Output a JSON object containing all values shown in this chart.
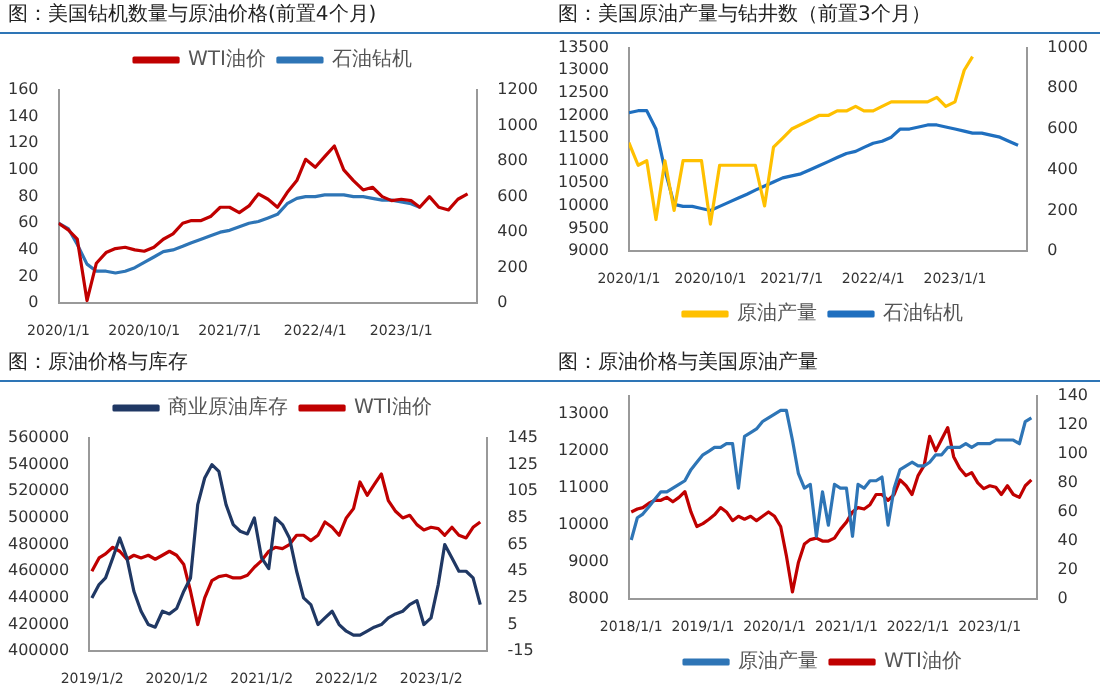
{
  "chart_data": [
    {
      "type": "line",
      "title": "图：美国钻机数量与原油价格(前置4个月)",
      "legend": "top",
      "marker": "none",
      "line_style": "solid",
      "xlim": [
        "2020-01-01",
        "2023-09-01"
      ],
      "xticks": [
        {
          "value": "2020-01-01",
          "label": "2020/1/1"
        },
        {
          "value": "2020-10-01",
          "label": "2020/10/1"
        },
        {
          "value": "2021-07-01",
          "label": "2021/7/1"
        },
        {
          "value": "2022-04-01",
          "label": "2022/4/1"
        },
        {
          "value": "2023-01-01",
          "label": "2023/1/1"
        }
      ],
      "ylim": [
        0,
        160
      ],
      "yticks": [
        0,
        20,
        40,
        60,
        80,
        100,
        120,
        140,
        160
      ],
      "y2lim": [
        0,
        1200
      ],
      "y2ticks": [
        0,
        200,
        400,
        600,
        800,
        1000,
        1200
      ],
      "series": [
        {
          "name": "WTI油价",
          "color": "#c00000",
          "x": [
            "2020-01",
            "2020-02",
            "2020-03",
            "2020-04",
            "2020-05",
            "2020-06",
            "2020-07",
            "2020-08",
            "2020-09",
            "2020-10",
            "2020-11",
            "2020-12",
            "2021-01",
            "2021-02",
            "2021-03",
            "2021-04",
            "2021-05",
            "2021-06",
            "2021-07",
            "2021-08",
            "2021-09",
            "2021-10",
            "2021-11",
            "2021-12",
            "2022-01",
            "2022-02",
            "2022-03",
            "2022-04",
            "2022-05",
            "2022-06",
            "2022-07",
            "2022-08",
            "2022-09",
            "2022-10",
            "2022-11",
            "2022-12",
            "2023-01",
            "2023-02",
            "2023-03",
            "2023-04",
            "2023-05",
            "2023-06",
            "2023-07",
            "2023-08"
          ],
          "values": [
            60,
            55,
            48,
            2,
            30,
            38,
            41,
            42,
            40,
            39,
            42,
            48,
            52,
            60,
            62,
            62,
            65,
            72,
            72,
            68,
            73,
            82,
            78,
            72,
            83,
            92,
            108,
            102,
            110,
            118,
            100,
            92,
            85,
            87,
            80,
            77,
            78,
            77,
            72,
            80,
            72,
            70,
            78,
            82
          ]
        },
        {
          "name": "石油钻机",
          "color": "#2e75b6",
          "axis": "y2",
          "x": [
            "2020-01",
            "2020-02",
            "2020-03",
            "2020-04",
            "2020-05",
            "2020-06",
            "2020-07",
            "2020-08",
            "2020-09",
            "2020-10",
            "2020-11",
            "2020-12",
            "2021-01",
            "2021-02",
            "2021-03",
            "2021-04",
            "2021-05",
            "2021-06",
            "2021-07",
            "2021-08",
            "2021-09",
            "2021-10",
            "2021-11",
            "2021-12",
            "2022-01",
            "2022-02",
            "2022-03",
            "2022-04",
            "2022-05",
            "2022-06",
            "2022-07",
            "2022-08",
            "2022-09",
            "2022-10",
            "2022-11",
            "2022-12",
            "2023-01",
            "2023-02",
            "2023-03"
          ],
          "values": [
            450,
            420,
            330,
            220,
            180,
            180,
            170,
            180,
            200,
            230,
            260,
            290,
            300,
            320,
            340,
            360,
            380,
            400,
            410,
            430,
            450,
            460,
            480,
            500,
            560,
            590,
            600,
            600,
            610,
            610,
            610,
            600,
            600,
            590,
            580,
            580,
            570,
            560,
            540
          ]
        }
      ]
    },
    {
      "type": "line",
      "title": "图：美国原油产量与钻井数（前置3个月）",
      "legend": "bottom",
      "marker": "none",
      "line_style": "solid",
      "xlim": [
        "2020-01-01",
        "2023-09-01"
      ],
      "xticks": [
        {
          "value": "2020-01-01",
          "label": "2020/1/1"
        },
        {
          "value": "2020-10-01",
          "label": "2020/10/1"
        },
        {
          "value": "2021-07-01",
          "label": "2021/7/1"
        },
        {
          "value": "2022-04-01",
          "label": "2022/4/1"
        },
        {
          "value": "2023-01-01",
          "label": "2023/1/1"
        }
      ],
      "ylim": [
        9000,
        13500
      ],
      "yticks": [
        9000,
        9500,
        10000,
        10500,
        11000,
        11500,
        12000,
        12500,
        13000,
        13500
      ],
      "y2lim": [
        0,
        1000
      ],
      "y2ticks": [
        0,
        200,
        400,
        600,
        800,
        1000
      ],
      "series": [
        {
          "name": "原油产量",
          "color": "#ffc000",
          "x": [
            "2020-01",
            "2020-02",
            "2020-03",
            "2020-04",
            "2020-05",
            "2020-06",
            "2020-07",
            "2020-08",
            "2020-09",
            "2020-10",
            "2020-11",
            "2020-12",
            "2021-01",
            "2021-02",
            "2021-03",
            "2021-04",
            "2021-05",
            "2021-06",
            "2021-07",
            "2021-08",
            "2021-09",
            "2021-10",
            "2021-11",
            "2021-12",
            "2022-01",
            "2022-02",
            "2022-03",
            "2022-04",
            "2022-05",
            "2022-06",
            "2022-07",
            "2022-08",
            "2022-09",
            "2022-10",
            "2022-11",
            "2022-12",
            "2023-01",
            "2023-02",
            "2023-03"
          ],
          "values": [
            11400,
            10900,
            11000,
            9700,
            11000,
            9900,
            11000,
            11000,
            11000,
            9600,
            10900,
            10900,
            10900,
            10900,
            10900,
            10000,
            11300,
            11500,
            11700,
            11800,
            11900,
            12000,
            12000,
            12100,
            12100,
            12200,
            12100,
            12100,
            12200,
            12300,
            12300,
            12300,
            12300,
            12300,
            12400,
            12200,
            12300,
            13000,
            13300
          ]
        },
        {
          "name": "石油钻机",
          "color": "#1f6fbf",
          "axis": "y2",
          "x": [
            "2020-01",
            "2020-02",
            "2020-03",
            "2020-04",
            "2020-05",
            "2020-06",
            "2020-07",
            "2020-08",
            "2020-09",
            "2020-10",
            "2020-11",
            "2020-12",
            "2021-01",
            "2021-02",
            "2021-03",
            "2021-04",
            "2021-05",
            "2021-06",
            "2021-07",
            "2021-08",
            "2021-09",
            "2021-10",
            "2021-11",
            "2021-12",
            "2022-01",
            "2022-02",
            "2022-03",
            "2022-04",
            "2022-05",
            "2022-06",
            "2022-07",
            "2022-08",
            "2022-09",
            "2022-10",
            "2022-11",
            "2022-12",
            "2023-01",
            "2023-02",
            "2023-03",
            "2023-04",
            "2023-05",
            "2023-06",
            "2023-07",
            "2023-08"
          ],
          "values": [
            680,
            690,
            690,
            600,
            400,
            230,
            220,
            220,
            210,
            200,
            220,
            240,
            260,
            280,
            300,
            320,
            340,
            360,
            370,
            380,
            400,
            420,
            440,
            460,
            480,
            490,
            510,
            530,
            540,
            560,
            600,
            600,
            610,
            620,
            620,
            610,
            600,
            590,
            580,
            580,
            570,
            560,
            540,
            520
          ]
        }
      ]
    },
    {
      "type": "line",
      "title": "图：原油价格与库存",
      "legend": "top",
      "marker": "none",
      "line_style": "solid",
      "xlim": [
        "2018-12-20",
        "2023-09-01"
      ],
      "xticks": [
        {
          "value": "2019-01-02",
          "label": "2019/1/2"
        },
        {
          "value": "2020-01-02",
          "label": "2020/1/2"
        },
        {
          "value": "2021-01-02",
          "label": "2021/1/2"
        },
        {
          "value": "2022-01-02",
          "label": "2022/1/2"
        },
        {
          "value": "2023-01-02",
          "label": "2023/1/2"
        }
      ],
      "ylim": [
        400000,
        560000
      ],
      "yticks": [
        400000,
        420000,
        440000,
        460000,
        480000,
        500000,
        520000,
        540000,
        560000
      ],
      "y2lim": [
        -15,
        145
      ],
      "y2ticks": [
        -15,
        5,
        25,
        45,
        65,
        85,
        105,
        125,
        145
      ],
      "series": [
        {
          "name": "商业原油库存",
          "color": "#203864",
          "x": [
            "2019-01",
            "2019-02",
            "2019-03",
            "2019-04",
            "2019-05",
            "2019-06",
            "2019-07",
            "2019-08",
            "2019-09",
            "2019-10",
            "2019-11",
            "2019-12",
            "2020-01",
            "2020-02",
            "2020-03",
            "2020-04",
            "2020-05",
            "2020-06",
            "2020-07",
            "2020-08",
            "2020-09",
            "2020-10",
            "2020-11",
            "2020-12",
            "2021-01",
            "2021-02",
            "2021-03",
            "2021-04",
            "2021-05",
            "2021-06",
            "2021-07",
            "2021-08",
            "2021-09",
            "2021-10",
            "2021-11",
            "2021-12",
            "2022-01",
            "2022-02",
            "2022-03",
            "2022-04",
            "2022-05",
            "2022-06",
            "2022-07",
            "2022-08",
            "2022-09",
            "2022-10",
            "2022-11",
            "2022-12",
            "2023-01",
            "2023-02",
            "2023-03",
            "2023-04",
            "2023-05",
            "2023-06",
            "2023-07",
            "2023-08"
          ],
          "values": [
            440000,
            450000,
            455000,
            470000,
            485000,
            470000,
            445000,
            430000,
            420000,
            418000,
            430000,
            428000,
            432000,
            445000,
            455000,
            510000,
            530000,
            540000,
            535000,
            510000,
            495000,
            490000,
            488000,
            500000,
            470000,
            462000,
            500000,
            495000,
            485000,
            460000,
            440000,
            435000,
            420000,
            425000,
            430000,
            420000,
            415000,
            412000,
            412000,
            415000,
            418000,
            420000,
            425000,
            428000,
            430000,
            435000,
            438000,
            420000,
            425000,
            450000,
            480000,
            470000,
            460000,
            460000,
            455000,
            435000
          ]
        },
        {
          "name": "WTI油价",
          "color": "#c00000",
          "axis": "y2",
          "x": [
            "2019-01",
            "2019-02",
            "2019-03",
            "2019-04",
            "2019-05",
            "2019-06",
            "2019-07",
            "2019-08",
            "2019-09",
            "2019-10",
            "2019-11",
            "2019-12",
            "2020-01",
            "2020-02",
            "2020-03",
            "2020-04",
            "2020-05",
            "2020-06",
            "2020-07",
            "2020-08",
            "2020-09",
            "2020-10",
            "2020-11",
            "2020-12",
            "2021-01",
            "2021-02",
            "2021-03",
            "2021-04",
            "2021-05",
            "2021-06",
            "2021-07",
            "2021-08",
            "2021-09",
            "2021-10",
            "2021-11",
            "2021-12",
            "2022-01",
            "2022-02",
            "2022-03",
            "2022-04",
            "2022-05",
            "2022-06",
            "2022-07",
            "2022-08",
            "2022-09",
            "2022-10",
            "2022-11",
            "2022-12",
            "2023-01",
            "2023-02",
            "2023-03",
            "2023-04",
            "2023-05",
            "2023-06",
            "2023-07",
            "2023-08"
          ],
          "values": [
            45,
            55,
            58,
            63,
            60,
            54,
            57,
            55,
            57,
            54,
            57,
            60,
            57,
            50,
            30,
            5,
            25,
            38,
            41,
            42,
            40,
            40,
            42,
            48,
            53,
            60,
            63,
            62,
            65,
            72,
            72,
            68,
            72,
            82,
            78,
            72,
            85,
            92,
            112,
            102,
            110,
            118,
            98,
            90,
            85,
            87,
            80,
            76,
            78,
            77,
            72,
            78,
            72,
            70,
            78,
            82
          ]
        }
      ]
    },
    {
      "type": "line",
      "title": "图：原油价格与美国原油产量",
      "legend": "bottom",
      "marker": "none",
      "line_style": "solid",
      "xlim": [
        "2017-12-20",
        "2023-09-01"
      ],
      "xticks": [
        {
          "value": "2018-01-01",
          "label": "2018/1/1"
        },
        {
          "value": "2019-01-01",
          "label": "2019/1/1"
        },
        {
          "value": "2020-01-01",
          "label": "2020/1/1"
        },
        {
          "value": "2021-01-01",
          "label": "2021/1/1"
        },
        {
          "value": "2022-01-01",
          "label": "2022/1/1"
        },
        {
          "value": "2023-01-01",
          "label": "2023/1/1"
        }
      ],
      "ylim": [
        8000,
        13500
      ],
      "yticks": [
        8000,
        9000,
        10000,
        11000,
        12000,
        13000
      ],
      "y2lim": [
        0,
        140
      ],
      "y2ticks": [
        0,
        20,
        40,
        60,
        80,
        100,
        120,
        140
      ],
      "series": [
        {
          "name": "原油产量",
          "color": "#2e75b6",
          "x": [
            "2018-01",
            "2018-02",
            "2018-03",
            "2018-04",
            "2018-05",
            "2018-06",
            "2018-07",
            "2018-08",
            "2018-09",
            "2018-10",
            "2018-11",
            "2018-12",
            "2019-01",
            "2019-02",
            "2019-03",
            "2019-04",
            "2019-05",
            "2019-06",
            "2019-07",
            "2019-08",
            "2019-09",
            "2019-10",
            "2019-11",
            "2019-12",
            "2020-01",
            "2020-02",
            "2020-03",
            "2020-04",
            "2020-05",
            "2020-06",
            "2020-07",
            "2020-08",
            "2020-09",
            "2020-10",
            "2020-11",
            "2020-12",
            "2021-01",
            "2021-02",
            "2021-03",
            "2021-04",
            "2021-05",
            "2021-06",
            "2021-07",
            "2021-08",
            "2021-09",
            "2021-10",
            "2021-11",
            "2021-12",
            "2022-01",
            "2022-02",
            "2022-03",
            "2022-04",
            "2022-05",
            "2022-06",
            "2022-07",
            "2022-08",
            "2022-09",
            "2022-10",
            "2022-11",
            "2022-12",
            "2023-01",
            "2023-02",
            "2023-03",
            "2023-04",
            "2023-05",
            "2023-06",
            "2023-07",
            "2023-08"
          ],
          "values": [
            9600,
            10200,
            10300,
            10500,
            10700,
            10900,
            10900,
            11000,
            11100,
            11200,
            11500,
            11700,
            11900,
            12000,
            12100,
            12100,
            12200,
            12200,
            11000,
            12400,
            12500,
            12600,
            12800,
            12900,
            13000,
            13100,
            13100,
            12300,
            11400,
            11000,
            11100,
            9700,
            10900,
            10000,
            11100,
            11000,
            11000,
            9700,
            11100,
            11000,
            11200,
            11200,
            11300,
            10000,
            11000,
            11500,
            11600,
            11700,
            11600,
            11600,
            11700,
            11900,
            11900,
            12100,
            12100,
            12100,
            12200,
            12100,
            12200,
            12200,
            12200,
            12300,
            12300,
            12300,
            12300,
            12200,
            12800,
            12900
          ]
        },
        {
          "name": "WTI油价",
          "color": "#c00000",
          "axis": "y2",
          "x": [
            "2018-01",
            "2018-02",
            "2018-03",
            "2018-04",
            "2018-05",
            "2018-06",
            "2018-07",
            "2018-08",
            "2018-09",
            "2018-10",
            "2018-11",
            "2018-12",
            "2019-01",
            "2019-02",
            "2019-03",
            "2019-04",
            "2019-05",
            "2019-06",
            "2019-07",
            "2019-08",
            "2019-09",
            "2019-10",
            "2019-11",
            "2019-12",
            "2020-01",
            "2020-02",
            "2020-03",
            "2020-04",
            "2020-05",
            "2020-06",
            "2020-07",
            "2020-08",
            "2020-09",
            "2020-10",
            "2020-11",
            "2020-12",
            "2021-01",
            "2021-02",
            "2021-03",
            "2021-04",
            "2021-05",
            "2021-06",
            "2021-07",
            "2021-08",
            "2021-09",
            "2021-10",
            "2021-11",
            "2021-12",
            "2022-01",
            "2022-02",
            "2022-03",
            "2022-04",
            "2022-05",
            "2022-06",
            "2022-07",
            "2022-08",
            "2022-09",
            "2022-10",
            "2022-11",
            "2022-12",
            "2023-01",
            "2023-02",
            "2023-03",
            "2023-04",
            "2023-05",
            "2023-06",
            "2023-07",
            "2023-08"
          ],
          "values": [
            60,
            62,
            63,
            66,
            68,
            68,
            70,
            67,
            70,
            74,
            60,
            50,
            52,
            55,
            58,
            63,
            60,
            54,
            57,
            55,
            57,
            54,
            57,
            60,
            57,
            50,
            30,
            5,
            25,
            38,
            41,
            42,
            40,
            40,
            42,
            48,
            53,
            60,
            63,
            62,
            65,
            72,
            72,
            68,
            72,
            82,
            78,
            72,
            85,
            92,
            112,
            102,
            110,
            118,
            98,
            90,
            85,
            87,
            80,
            76,
            78,
            77,
            72,
            78,
            72,
            70,
            78,
            82
          ]
        }
      ]
    }
  ]
}
